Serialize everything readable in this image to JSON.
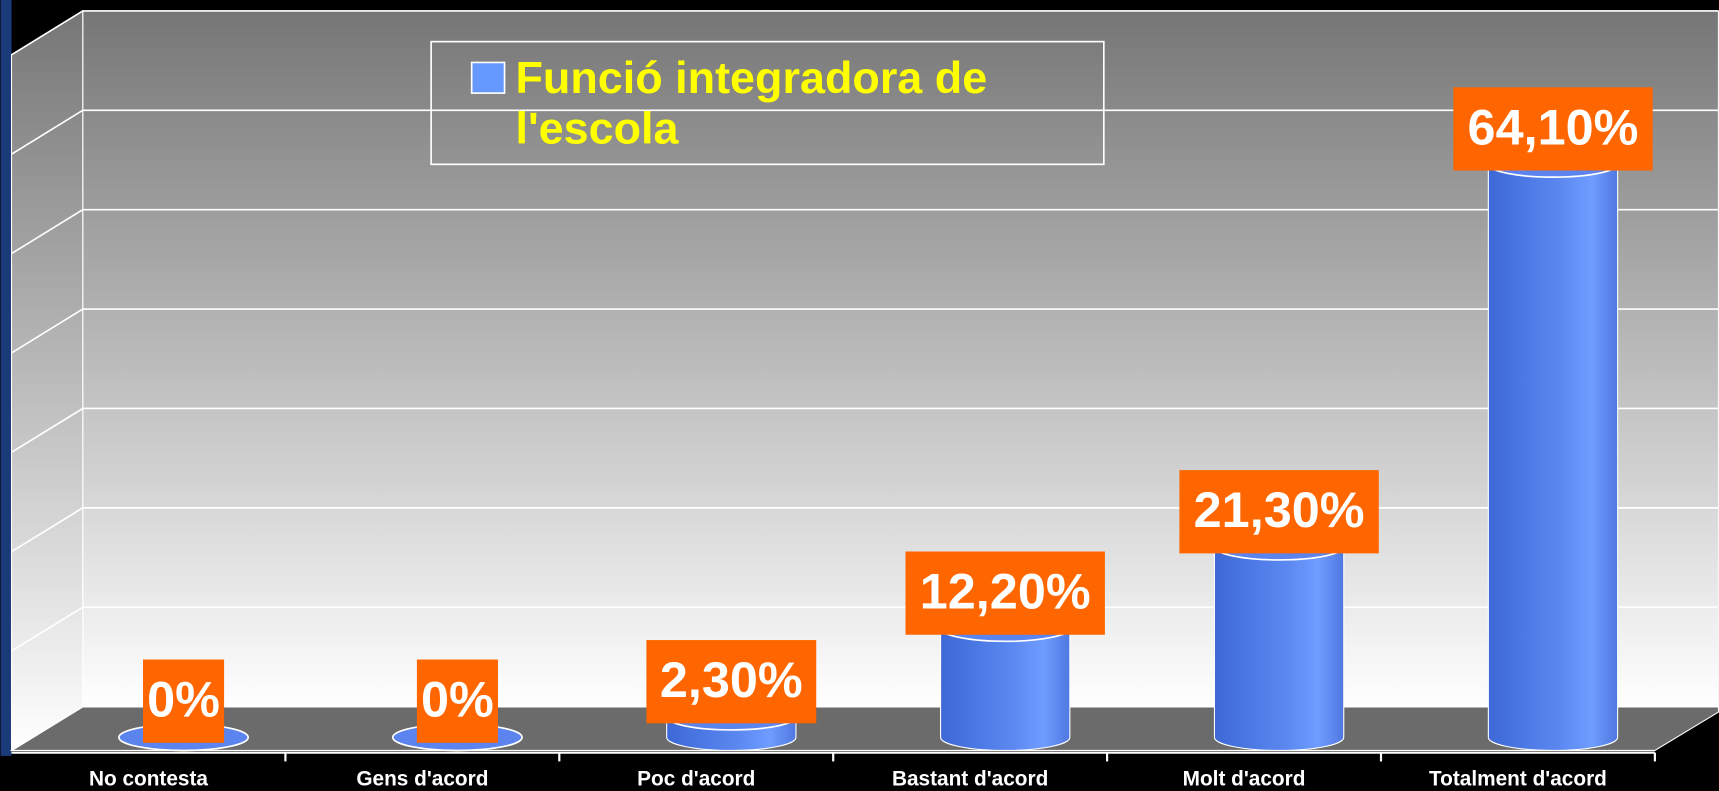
{
  "chart_data": {
    "type": "bar",
    "categories": [
      "No contesta",
      "Gens d'acord",
      "Poc d'acord",
      "Bastant d'acord",
      "Molt d'acord",
      "Totalment d'acord"
    ],
    "series": [
      {
        "name": "Funció integradora de l'escola",
        "color": "#6699ff",
        "values": [
          0,
          0,
          2.3,
          12.2,
          21.3,
          64.1
        ],
        "value_labels": [
          "0%",
          "0%",
          "2,30%",
          "12,20%",
          "21,30%",
          "64,10%"
        ]
      }
    ],
    "ylim": [
      0,
      70
    ],
    "yticks": [
      0,
      10,
      20,
      30,
      40,
      50,
      60,
      70
    ],
    "grid": true,
    "legend": "top"
  }
}
